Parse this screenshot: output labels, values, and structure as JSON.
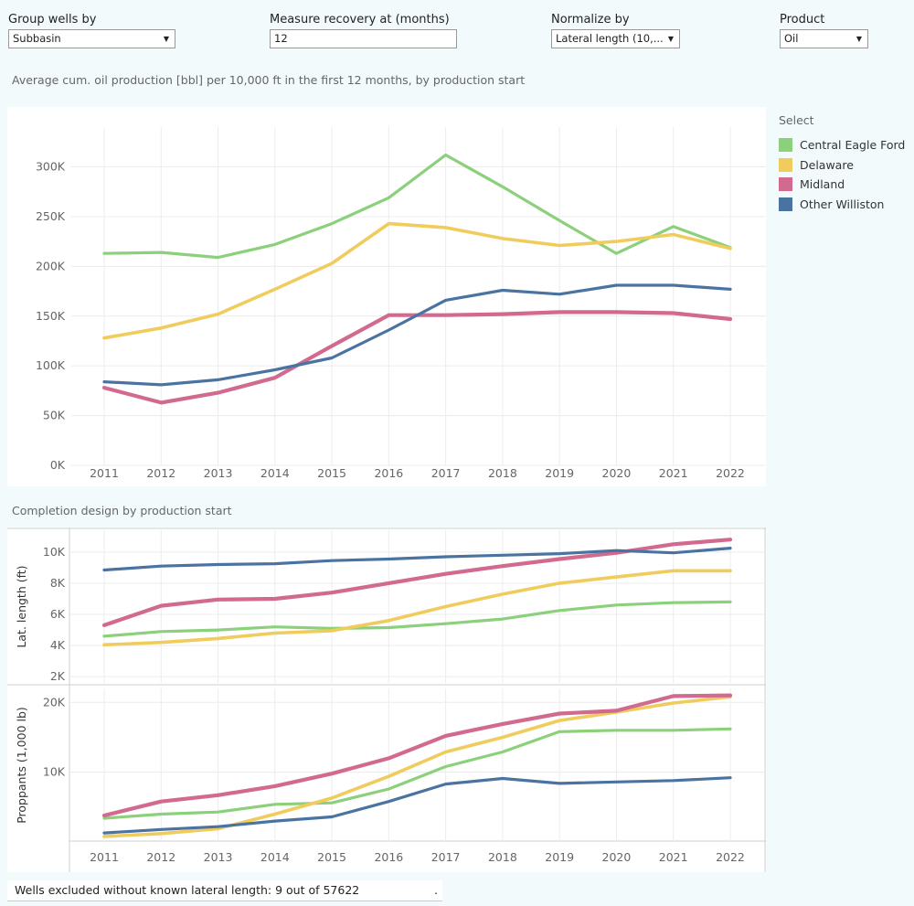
{
  "filters": {
    "group": {
      "label": "Group wells by",
      "value": "Subbasin"
    },
    "recovery": {
      "label": "Measure recovery at (months)",
      "value": "12"
    },
    "normalize": {
      "label": "Normalize by",
      "value": "Lateral length (10,..."
    },
    "product": {
      "label": "Product",
      "value": "Oil"
    }
  },
  "titles": {
    "main": "Average cum. oil production [bbl] per 10,000 ft in the first 12 months, by production start",
    "completion": "Completion design by production start"
  },
  "legend": {
    "title": "Select",
    "items": [
      {
        "name": "Central Eagle Ford",
        "color": "#8bd07a"
      },
      {
        "name": "Delaware",
        "color": "#f0cc5c"
      },
      {
        "name": "Midland",
        "color": "#d2698f"
      },
      {
        "name": "Other Williston",
        "color": "#4a73a2"
      }
    ]
  },
  "footer": {
    "text": "Wells excluded without known lateral length: 9 out of 57622",
    "mark": "."
  },
  "chart_data": [
    {
      "type": "line",
      "x": [
        "2011",
        "2012",
        "2013",
        "2014",
        "2015",
        "2016",
        "2017",
        "2018",
        "2019",
        "2020",
        "2021",
        "2022"
      ],
      "ylim": [
        0,
        340000
      ],
      "yticks": [
        0,
        50000,
        100000,
        150000,
        200000,
        250000,
        300000
      ],
      "ytick_labels": [
        "0K",
        "50K",
        "100K",
        "150K",
        "200K",
        "250K",
        "300K"
      ],
      "series": [
        {
          "name": "Central Eagle Ford",
          "color": "#8bd07a",
          "values": [
            213000,
            214000,
            209000,
            222000,
            243000,
            269000,
            312000,
            280000,
            246000,
            213000,
            240000,
            219000
          ]
        },
        {
          "name": "Delaware",
          "color": "#f0cc5c",
          "values": [
            128000,
            138000,
            152000,
            177000,
            203000,
            243000,
            239000,
            228000,
            221000,
            225000,
            232000,
            218000
          ]
        },
        {
          "name": "Midland",
          "color": "#d2698f",
          "values": [
            78000,
            63000,
            73000,
            88000,
            120000,
            151000,
            151000,
            152000,
            154000,
            154000,
            153000,
            147000
          ]
        },
        {
          "name": "Other Williston",
          "color": "#4a73a2",
          "values": [
            84000,
            81000,
            86000,
            96000,
            108000,
            136000,
            166000,
            176000,
            172000,
            181000,
            181000,
            177000
          ]
        }
      ]
    },
    {
      "type": "line",
      "ylabel": "Lat. length (ft)",
      "x": [
        "2011",
        "2012",
        "2013",
        "2014",
        "2015",
        "2016",
        "2017",
        "2018",
        "2019",
        "2020",
        "2021",
        "2022"
      ],
      "ylim": [
        1600,
        11400
      ],
      "yticks": [
        2000,
        4000,
        6000,
        8000,
        10000
      ],
      "ytick_labels": [
        "2K",
        "4K",
        "6K",
        "8K",
        "10K"
      ],
      "series": [
        {
          "name": "Central Eagle Ford",
          "color": "#8bd07a",
          "values": [
            4600,
            4900,
            5000,
            5200,
            5100,
            5150,
            5400,
            5700,
            6250,
            6600,
            6750,
            6800
          ]
        },
        {
          "name": "Delaware",
          "color": "#f0cc5c",
          "values": [
            4050,
            4200,
            4450,
            4800,
            4950,
            5600,
            6500,
            7300,
            8000,
            8400,
            8800,
            8800
          ]
        },
        {
          "name": "Midland",
          "color": "#d2698f",
          "values": [
            5300,
            6550,
            6950,
            7000,
            7400,
            8000,
            8600,
            9100,
            9550,
            9950,
            10500,
            10800
          ]
        },
        {
          "name": "Other Williston",
          "color": "#4a73a2",
          "values": [
            8850,
            9100,
            9200,
            9250,
            9450,
            9550,
            9700,
            9800,
            9900,
            10100,
            9950,
            10250
          ]
        }
      ]
    },
    {
      "type": "line",
      "ylabel": "Proppants (1,000 lb)",
      "x": [
        "2011",
        "2012",
        "2013",
        "2014",
        "2015",
        "2016",
        "2017",
        "2018",
        "2019",
        "2020",
        "2021",
        "2022"
      ],
      "xlabels": [
        "2011",
        "2012",
        "2013",
        "2014",
        "2015",
        "2016",
        "2017",
        "2018",
        "2019",
        "2020",
        "2021",
        "2022"
      ],
      "ylim": [
        0,
        22000
      ],
      "yticks": [
        10000,
        20000
      ],
      "ytick_labels": [
        "10K",
        "20K"
      ],
      "series": [
        {
          "name": "Central Eagle Ford",
          "color": "#8bd07a",
          "values": [
            3400,
            4000,
            4300,
            5400,
            5600,
            7600,
            10800,
            12900,
            15800,
            16000,
            16000,
            16200
          ]
        },
        {
          "name": "Delaware",
          "color": "#f0cc5c",
          "values": [
            800,
            1200,
            1900,
            4000,
            6300,
            9400,
            12900,
            15000,
            17400,
            18600,
            19900,
            20800
          ]
        },
        {
          "name": "Midland",
          "color": "#d2698f",
          "values": [
            3800,
            5800,
            6700,
            8000,
            9800,
            12000,
            15200,
            16900,
            18400,
            18800,
            20900,
            21000
          ]
        },
        {
          "name": "Other Williston",
          "color": "#4a73a2",
          "values": [
            1300,
            1800,
            2200,
            3000,
            3600,
            5800,
            8300,
            9100,
            8400,
            8600,
            8800,
            9200
          ]
        }
      ]
    }
  ]
}
